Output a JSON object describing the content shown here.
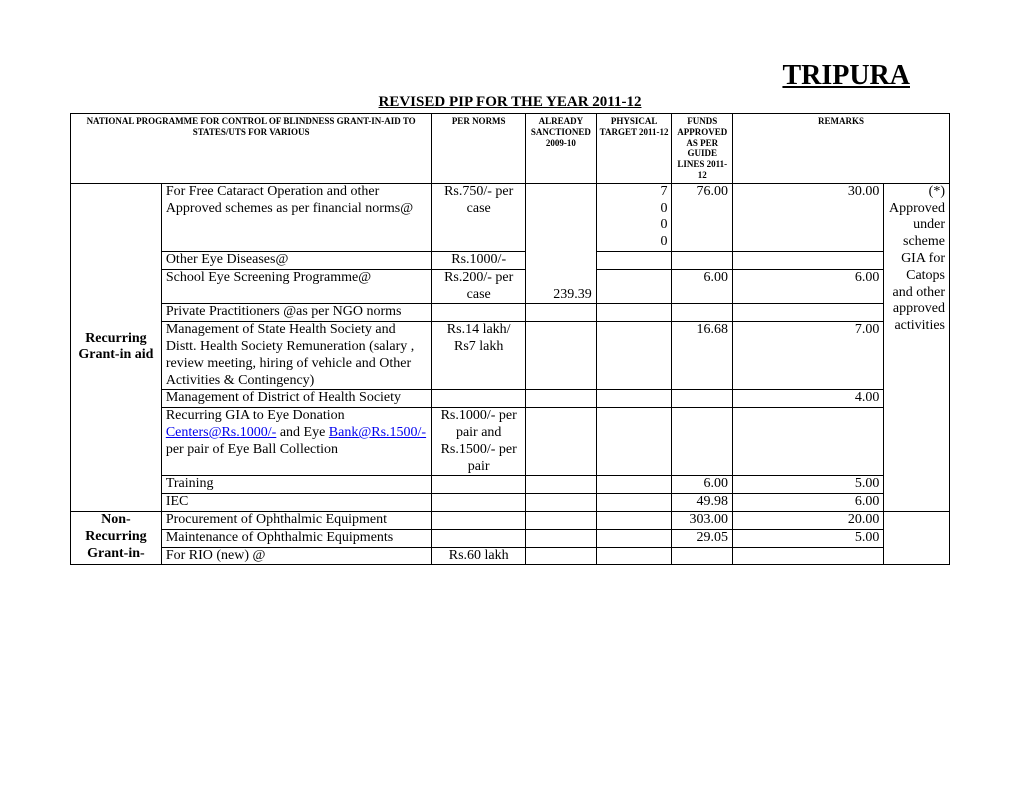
{
  "header": {
    "state": "TRIPURA",
    "subtitle": "REVISED PIP FOR THE YEAR 2011-12"
  },
  "columns": {
    "c0": "NATIONAL PROGRAMME FOR CONTROL OF BLINDNESS GRANT-IN-AID TO STATES/UTS FOR VARIOUS",
    "c2": "PER NORMS",
    "c3": "ALREADY SANCTIONED 2009-10",
    "c4": "PHYSICAL TARGET 2011-12",
    "c5": "FUNDS APPROVED AS PER GUIDE LINES 2011-12",
    "c6": "REMARKS"
  },
  "rowgroups": {
    "recurring_label": "Recurring Grant-in aid",
    "nonrecurring_label": "Non-Recurring Grant-in-"
  },
  "rows": {
    "r1": {
      "desc": "For Free Cataract Operation and other Approved schemes as per financial norms@",
      "norm": "Rs.750/- per case",
      "phys": "7000",
      "funds": "76.00",
      "remarks_num": "30.00"
    },
    "r2": {
      "desc": "Other Eye Diseases@",
      "norm": "Rs.1000/-"
    },
    "r3": {
      "desc": "School Eye Screening Programme@",
      "norm": "Rs.200/- per case",
      "funds": "6.00",
      "remarks_num": "6.00",
      "sanctioned": "239.39"
    },
    "r4": {
      "desc": "Private Practitioners @as per NGO norms"
    },
    "r5": {
      "desc": "Management of State Health Society and Distt. Health Society Remuneration (salary , review meeting, hiring of vehicle and Other Activities & Contingency)",
      "norm": "Rs.14 lakh/ Rs7 lakh",
      "funds": "16.68",
      "remarks_num": "7.00"
    },
    "r6": {
      "desc": "Management of District of Health Society",
      "remarks_num": "4.00"
    },
    "r7": {
      "desc_pre": "Recurring GIA to Eye Donation ",
      "link1": "Centers@Rs.1000/-",
      "desc_mid": " and  Eye ",
      "link2": "Bank@Rs.1500/-",
      "desc_post": " per pair of  Eye Ball Collection",
      "norm": "Rs.1000/-  per pair  and Rs.1500/- per pair"
    },
    "r8": {
      "desc": "Training",
      "funds": "6.00",
      "remarks_num": "5.00"
    },
    "r9": {
      "desc": "IEC",
      "funds": "49.98",
      "remarks_num": "6.00"
    },
    "r10": {
      "desc": "Procurement of Ophthalmic Equipment",
      "funds": "303.00",
      "remarks_num": "20.00"
    },
    "r11": {
      "desc": "Maintenance of Ophthalmic Equipments",
      "funds": "29.05",
      "remarks_num": "5.00"
    },
    "r12": {
      "desc": "For RIO (new) @",
      "norm": "Rs.60 lakh"
    }
  },
  "remarks_text": "(*) Approved under scheme GIA for Catops and other approved activities"
}
